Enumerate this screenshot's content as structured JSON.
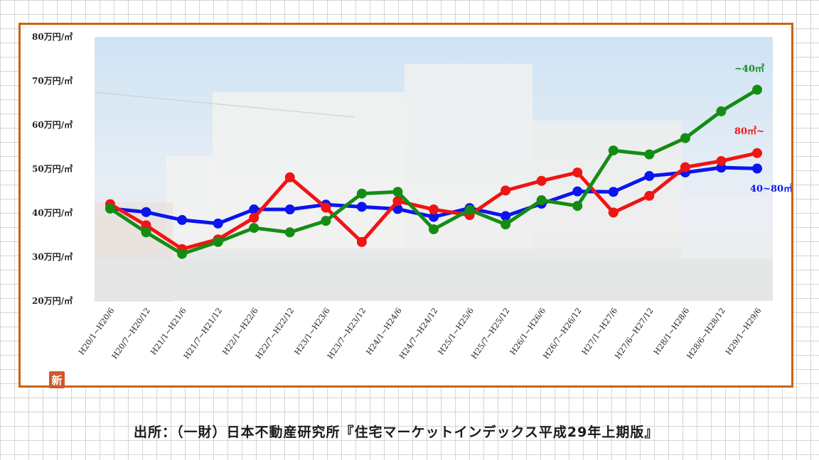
{
  "chart_data": {
    "type": "line",
    "ylim": [
      20,
      80
    ],
    "yticks": [
      {
        "value": 80,
        "label": "80万円/㎡"
      },
      {
        "value": 70,
        "label": "70万円/㎡"
      },
      {
        "value": 60,
        "label": "60万円/㎡"
      },
      {
        "value": 50,
        "label": "50万円/㎡"
      },
      {
        "value": 40,
        "label": "40万円/㎡"
      },
      {
        "value": 30,
        "label": "30万円/㎡"
      },
      {
        "value": 20,
        "label": "20万円/㎡"
      }
    ],
    "categories": [
      "H20/1~H20/6",
      "H20/7~H20/12",
      "H21/1~H21/6",
      "H21/7~H21/12",
      "H22/1~H22/6",
      "H22/7~H22/12",
      "H23/1~H23/6",
      "H23/7~H23/12",
      "H24/1~H24/6",
      "H24/7~H24/12",
      "H25/1~H25/6",
      "H25/7~H25/12",
      "H26/1~H26/6",
      "H26/7~H26/12",
      "H27/1~H27/6",
      "H27/6~H27/12",
      "H28/1~H28/6",
      "H28/6~H28/12",
      "H29/1~H29/6"
    ],
    "series": [
      {
        "name": "40~80㎡",
        "color": "#0a14f0",
        "values": [
          41,
          40.2,
          38.4,
          37.6,
          40.8,
          40.8,
          41.9,
          41.4,
          40.9,
          39.1,
          41.1,
          39.3,
          42.1,
          44.9,
          44.8,
          48.4,
          49.2,
          50.3,
          50.1
        ]
      },
      {
        "name": "80㎡~",
        "color": "#f01414",
        "values": [
          42,
          37.2,
          31.8,
          34,
          38.9,
          48.1,
          41.2,
          33.4,
          42.7,
          40.8,
          39.5,
          45.1,
          47.3,
          49.2,
          40.1,
          43.9,
          50.4,
          51.8,
          53.6
        ]
      },
      {
        "name": "~40㎡",
        "color": "#148c14",
        "values": [
          41,
          35.6,
          30.7,
          33.4,
          36.6,
          35.6,
          38.2,
          44.4,
          44.8,
          36.3,
          40.7,
          37.4,
          42.9,
          41.6,
          54.2,
          53.3,
          57,
          63.1,
          68
        ]
      }
    ]
  },
  "badge": "新",
  "source": "出所：（一財）日本不動産研究所『住宅マーケットインデックス平成29年上期版』"
}
